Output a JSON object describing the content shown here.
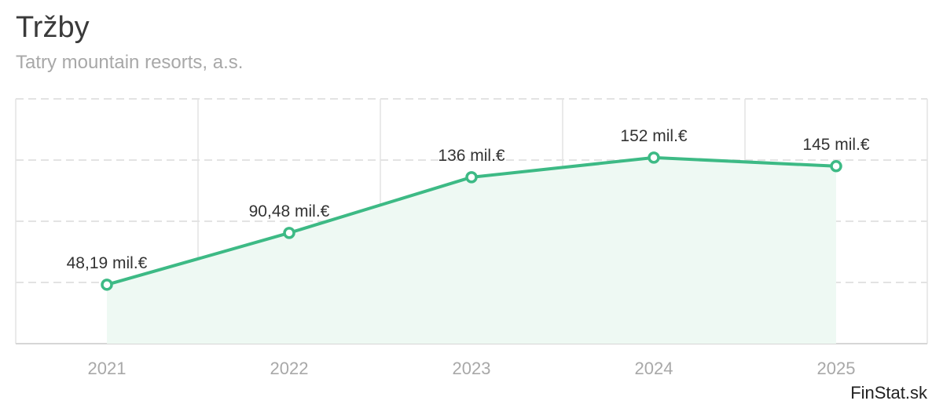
{
  "header": {
    "title": "Tržby",
    "subtitle": "Tatry mountain resorts, a.s."
  },
  "footer": {
    "brand": "FinStat.sk"
  },
  "colors": {
    "line": "#3dba85",
    "fill": "#eef9f3",
    "grid": "#e3e3e3",
    "tick": "#a8a8a8",
    "label": "#333333"
  },
  "chart_data": {
    "type": "area",
    "title": "Tržby",
    "subtitle": "Tatry mountain resorts, a.s.",
    "categories": [
      "2021",
      "2022",
      "2023",
      "2024",
      "2025"
    ],
    "series": [
      {
        "name": "Tržby",
        "values": [
          48.19,
          90.48,
          136,
          152,
          145
        ],
        "labels": [
          "48,19 mil.€",
          "90,48 mil.€",
          "136 mil.€",
          "152 mil.€",
          "145 mil.€"
        ]
      }
    ],
    "ylim": [
      0,
      200
    ],
    "xlabel": "",
    "ylabel": "",
    "grid": true,
    "legend": "none"
  }
}
